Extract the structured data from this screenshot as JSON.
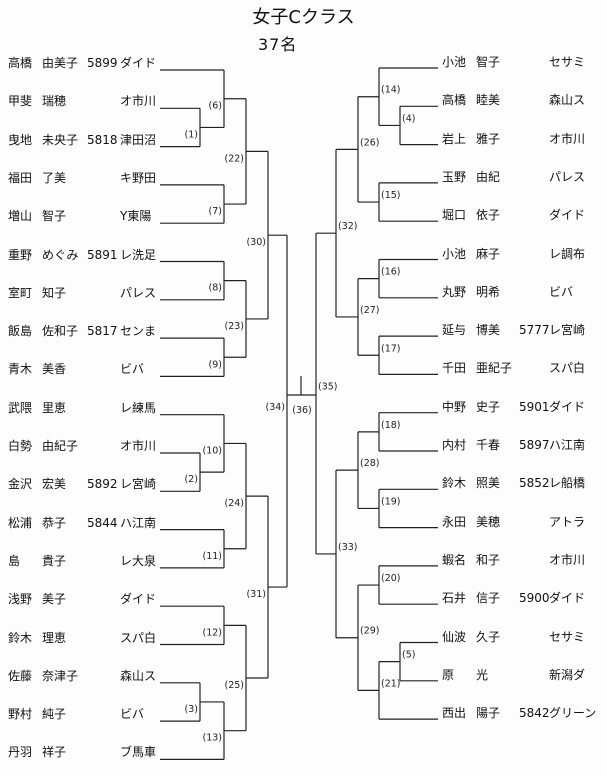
{
  "title": "女子Cクラス",
  "count": "37名",
  "left_players": [
    {
      "surname": "高橋",
      "given": "由美子",
      "number": "5899",
      "club": "ダイド"
    },
    {
      "surname": "甲斐",
      "given": "瑞穂",
      "number": "",
      "club": "オ市川"
    },
    {
      "surname": "曳地",
      "given": "未央子",
      "number": "5818",
      "club": "津田沼"
    },
    {
      "surname": "福田",
      "given": "了美",
      "number": "",
      "club": "キ野田"
    },
    {
      "surname": "増山",
      "given": "智子",
      "number": "",
      "club": "Y東陽"
    },
    {
      "surname": "重野",
      "given": "めぐみ",
      "number": "5891",
      "club": "レ洗足"
    },
    {
      "surname": "室町",
      "given": "知子",
      "number": "",
      "club": "パレス"
    },
    {
      "surname": "飯島",
      "given": "佐和子",
      "number": "5817",
      "club": "センま"
    },
    {
      "surname": "青木",
      "given": "美香",
      "number": "",
      "club": "ビバ"
    },
    {
      "surname": "武隈",
      "given": "里恵",
      "number": "",
      "club": "レ練馬"
    },
    {
      "surname": "白勢",
      "given": "由紀子",
      "number": "",
      "club": "オ市川"
    },
    {
      "surname": "金沢",
      "given": "宏美",
      "number": "5892",
      "club": "レ宮崎"
    },
    {
      "surname": "松浦",
      "given": "恭子",
      "number": "5844",
      "club": "ハ江南"
    },
    {
      "surname": "島",
      "given": "貴子",
      "number": "",
      "club": "レ大泉"
    },
    {
      "surname": "浅野",
      "given": "美子",
      "number": "",
      "club": "ダイド"
    },
    {
      "surname": "鈴木",
      "given": "理恵",
      "number": "",
      "club": "スパ白"
    },
    {
      "surname": "佐藤",
      "given": "奈津子",
      "number": "",
      "club": "森山ス"
    },
    {
      "surname": "野村",
      "given": "純子",
      "number": "",
      "club": "ビバ"
    },
    {
      "surname": "丹羽",
      "given": "祥子",
      "number": "",
      "club": "ブ馬車"
    }
  ],
  "right_players": [
    {
      "surname": "小池",
      "given": "智子",
      "number": "",
      "club": "セサミ"
    },
    {
      "surname": "高橋",
      "given": "睦美",
      "number": "",
      "club": "森山ス"
    },
    {
      "surname": "岩上",
      "given": "雅子",
      "number": "",
      "club": "オ市川"
    },
    {
      "surname": "玉野",
      "given": "由紀",
      "number": "",
      "club": "パレス"
    },
    {
      "surname": "堀口",
      "given": "依子",
      "number": "",
      "club": "ダイド"
    },
    {
      "surname": "小池",
      "given": "麻子",
      "number": "",
      "club": "レ調布"
    },
    {
      "surname": "丸野",
      "given": "明希",
      "number": "",
      "club": "ビバ"
    },
    {
      "surname": "延与",
      "given": "博美",
      "number": "5777",
      "club": "レ宮崎"
    },
    {
      "surname": "千田",
      "given": "亜紀子",
      "number": "",
      "club": "スパ白"
    },
    {
      "surname": "中野",
      "given": "史子",
      "number": "5901",
      "club": "ダイド"
    },
    {
      "surname": "内村",
      "given": "千春",
      "number": "5897",
      "club": "ハ江南"
    },
    {
      "surname": "鈴木",
      "given": "照美",
      "number": "5852",
      "club": "レ船橋"
    },
    {
      "surname": "永田",
      "given": "美穂",
      "number": "",
      "club": "アトラ"
    },
    {
      "surname": "蝦名",
      "given": "和子",
      "number": "",
      "club": "オ市川"
    },
    {
      "surname": "石井",
      "given": "信子",
      "number": "5900",
      "club": "ダイド"
    },
    {
      "surname": "仙波",
      "given": "久子",
      "number": "",
      "club": "セサミ"
    },
    {
      "surname": "原",
      "given": "光",
      "number": "",
      "club": "新潟ダ"
    },
    {
      "surname": "西出",
      "given": "陽子",
      "number": "5842",
      "club": "グリーン"
    }
  ],
  "matches": {
    "m1": "(1)",
    "m2": "(2)",
    "m3": "(3)",
    "m4": "(4)",
    "m5": "(5)",
    "m6": "(6)",
    "m7": "(7)",
    "m8": "(8)",
    "m9": "(9)",
    "m10": "(10)",
    "m11": "(11)",
    "m12": "(12)",
    "m13": "(13)",
    "m14": "(14)",
    "m15": "(15)",
    "m16": "(16)",
    "m17": "(17)",
    "m18": "(18)",
    "m19": "(19)",
    "m20": "(20)",
    "m21": "(21)",
    "m22": "(22)",
    "m23": "(23)",
    "m24": "(24)",
    "m25": "(25)",
    "m26": "(26)",
    "m27": "(27)",
    "m28": "(28)",
    "m29": "(29)",
    "m30": "(30)",
    "m31": "(31)",
    "m32": "(32)",
    "m33": "(33)",
    "m34": "(34)",
    "m35": "(35)",
    "m36": "(36)"
  }
}
